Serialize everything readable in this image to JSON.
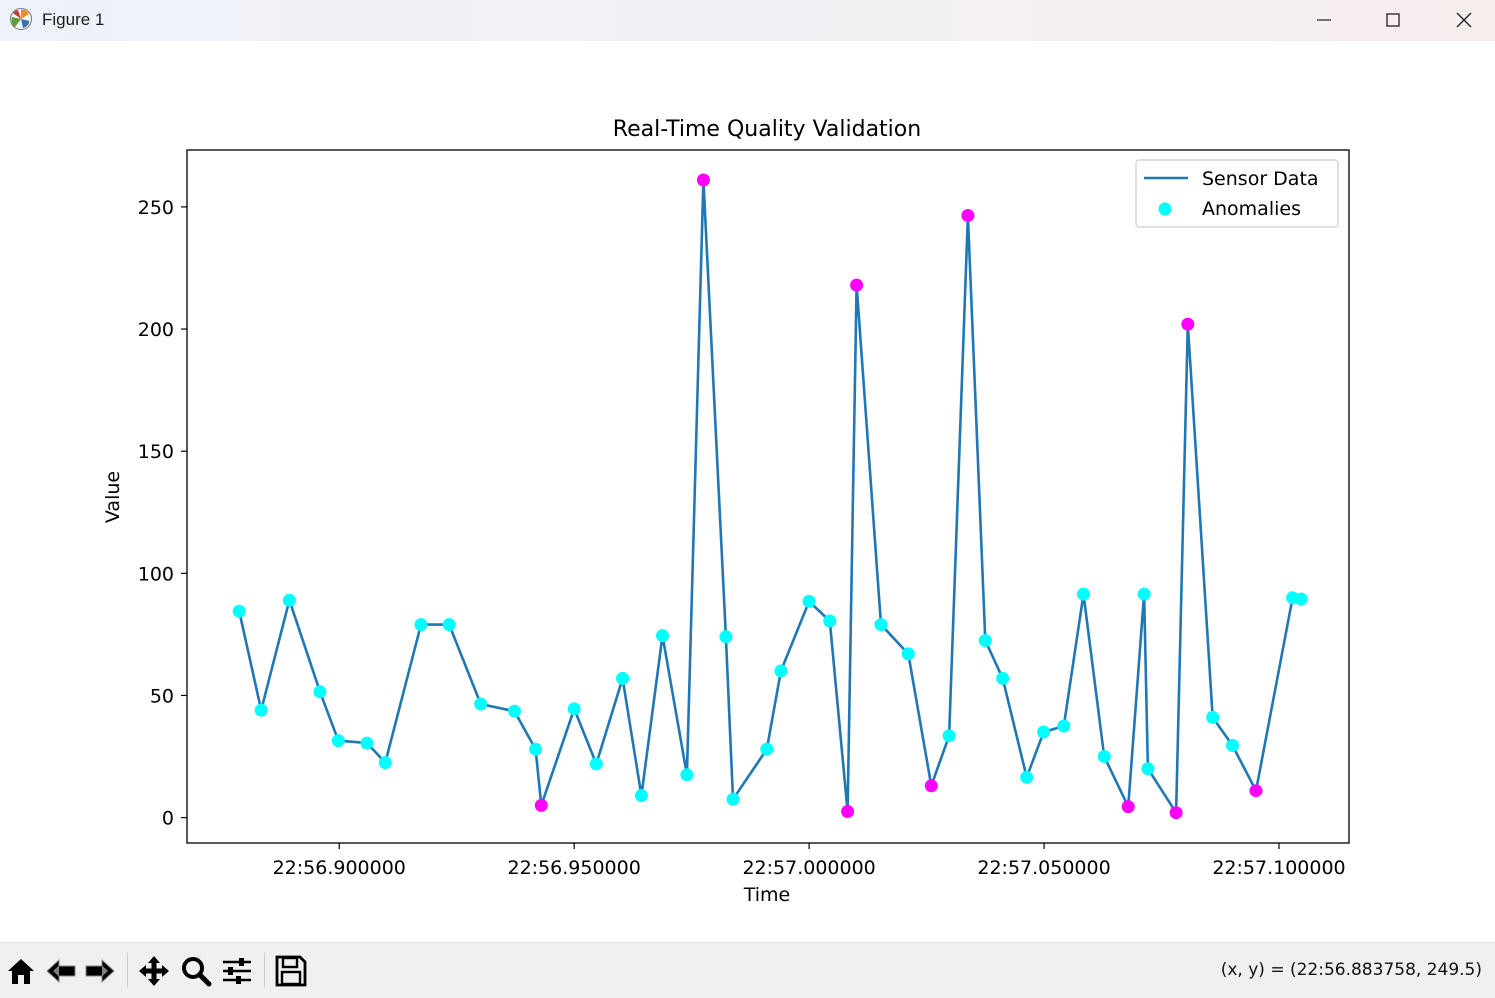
{
  "window": {
    "title": "Figure 1",
    "controls": [
      "minimize",
      "maximize",
      "close"
    ]
  },
  "chart_data": {
    "type": "line",
    "title": "Real-Time Quality Validation",
    "xlabel": "Time",
    "ylabel": "Value",
    "x_tick_labels": [
      "22:56.900000",
      "22:56.950000",
      "22:57.000000",
      "22:57.050000",
      "22:57.100000"
    ],
    "x_ticks_sec": [
      56.9,
      56.95,
      57.0,
      57.05,
      57.1
    ],
    "y_ticks": [
      0,
      50,
      100,
      150,
      200,
      250
    ],
    "xlim_sec": [
      56.8676,
      57.1149
    ],
    "ylim": [
      -10.4,
      273.3
    ],
    "grid": false,
    "legend": {
      "position": "top-right",
      "entries": [
        {
          "label": "Sensor Data",
          "kind": "line",
          "color": "#1f77b4"
        },
        {
          "label": "Anomalies",
          "kind": "marker",
          "color": "#00ffff"
        }
      ]
    },
    "line_color": "#1f77b4",
    "normal_marker_color": "#00ffff",
    "anomaly_marker_color": "#ff00ff",
    "x_unit": "seconds within minute 22 (22:SS.ffffff)",
    "series": [
      {
        "name": "Sensor Data",
        "x": [
          56.8787,
          56.8834,
          56.8894,
          56.8959,
          56.8998,
          56.9059,
          56.9098,
          56.9174,
          56.9234,
          56.9301,
          56.9373,
          56.9418,
          56.943,
          56.95,
          56.9547,
          56.9603,
          56.9643,
          56.9688,
          56.974,
          56.9775,
          56.9823,
          56.9838,
          56.991,
          56.994,
          57.0,
          57.0044,
          57.0082,
          57.0101,
          57.0153,
          57.0211,
          57.026,
          57.0298,
          57.0338,
          57.0375,
          57.0412,
          57.0463,
          57.0499,
          57.0542,
          57.0584,
          57.0628,
          57.0679,
          57.0713,
          57.0721,
          57.0781,
          57.0806,
          57.0859,
          57.0901,
          57.0951,
          57.1029,
          57.1047
        ],
        "y": [
          84.5,
          44.0,
          89.0,
          51.5,
          31.5,
          30.5,
          22.5,
          79.0,
          79.0,
          46.5,
          43.5,
          28.0,
          5.0,
          44.5,
          22.0,
          57.0,
          9.0,
          74.5,
          17.5,
          261.0,
          74.0,
          7.5,
          28.0,
          60.0,
          88.5,
          80.5,
          2.5,
          218.0,
          79.0,
          67.0,
          13.0,
          33.5,
          246.5,
          72.5,
          57.0,
          16.5,
          35.0,
          37.5,
          91.5,
          25.0,
          4.5,
          91.5,
          20.0,
          2.0,
          202.0,
          41.0,
          29.5,
          11.0,
          90.0,
          89.5
        ]
      },
      {
        "name": "Anomalies",
        "anomaly_flags": [
          false,
          false,
          false,
          false,
          false,
          false,
          false,
          false,
          false,
          false,
          false,
          false,
          true,
          false,
          false,
          false,
          false,
          false,
          false,
          true,
          false,
          false,
          false,
          false,
          false,
          false,
          true,
          true,
          false,
          false,
          true,
          false,
          true,
          false,
          false,
          false,
          false,
          false,
          false,
          false,
          true,
          false,
          false,
          true,
          true,
          false,
          false,
          true,
          false,
          false
        ]
      }
    ]
  },
  "toolbar": {
    "buttons": [
      {
        "name": "home",
        "icon": "home-icon"
      },
      {
        "name": "back",
        "icon": "back-arrow-icon"
      },
      {
        "name": "forward",
        "icon": "forward-arrow-icon"
      },
      {
        "name": "pan",
        "icon": "move-icon"
      },
      {
        "name": "zoom",
        "icon": "magnifier-icon"
      },
      {
        "name": "configure-subplots",
        "icon": "sliders-icon"
      },
      {
        "name": "save",
        "icon": "floppy-disk-icon"
      }
    ],
    "coordinates": "(x, y) = (22:56.883758, 249.5)"
  }
}
